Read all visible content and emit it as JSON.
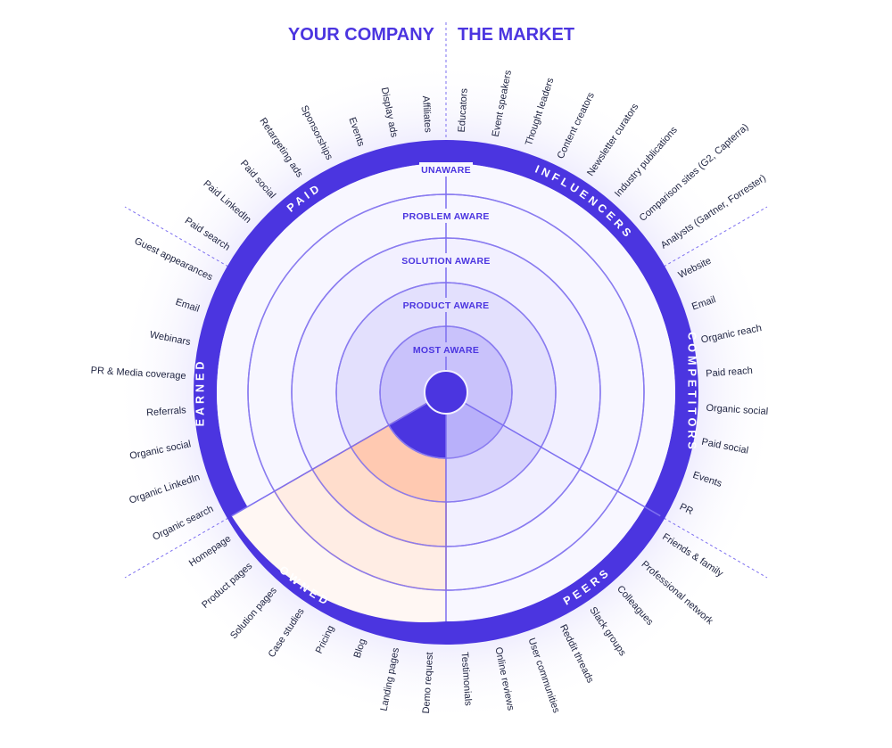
{
  "headers": {
    "left": "YOUR COMPANY",
    "right": "THE MARKET"
  },
  "rings": [
    "UNAWARE",
    "PROBLEM AWARE",
    "SOLUTION AWARE",
    "PRODUCT AWARE",
    "MOST AWARE"
  ],
  "segments": [
    {
      "key": "influencers",
      "label": "INFLUENCERS",
      "channels": [
        "Educators",
        "Event speakers",
        "Thought leaders",
        "Content creators",
        "Newsletter curators",
        "Industry publications",
        "Comparison sites (G2, Capterra)",
        "Analysts (Gartner, Forrester)"
      ]
    },
    {
      "key": "competitors",
      "label": "COMPETITORS",
      "channels": [
        "Website",
        "Email",
        "Organic reach",
        "Paid reach",
        "Organic social",
        "Paid social",
        "Events",
        "PR"
      ]
    },
    {
      "key": "peers",
      "label": "PEERS",
      "channels": [
        "Friends & family",
        "Professional network",
        "Colleagues",
        "Slack groups",
        "Reddit threads",
        "User communities",
        "Online reviews",
        "Testimonials"
      ]
    },
    {
      "key": "owned",
      "label": "OWNED",
      "channels": [
        "Demo request",
        "Landing pages",
        "Blog",
        "Pricing",
        "Case studies",
        "Solution pages",
        "Product pages",
        "Homepage"
      ]
    },
    {
      "key": "earned",
      "label": "EARNED",
      "channels": [
        "Organic search",
        "Organic LinkedIn",
        "Organic social",
        "Referrals",
        "PR & Media coverage",
        "Webinars",
        "Email",
        "Guest appearances"
      ]
    },
    {
      "key": "paid",
      "label": "PAID",
      "channels": [
        "Paid search",
        "Paid LinkedIn",
        "Paid social",
        "Retargeting ads",
        "Sponsorships",
        "Events",
        "Display ads",
        "Affiliates"
      ]
    }
  ],
  "colors": {
    "accent": "#4b35e0",
    "ring_stroke": "#8a7cf0",
    "highlight_fill": "#ffd9c7",
    "highlight_stroke": "#f08a5d",
    "text": "#1e2340"
  }
}
